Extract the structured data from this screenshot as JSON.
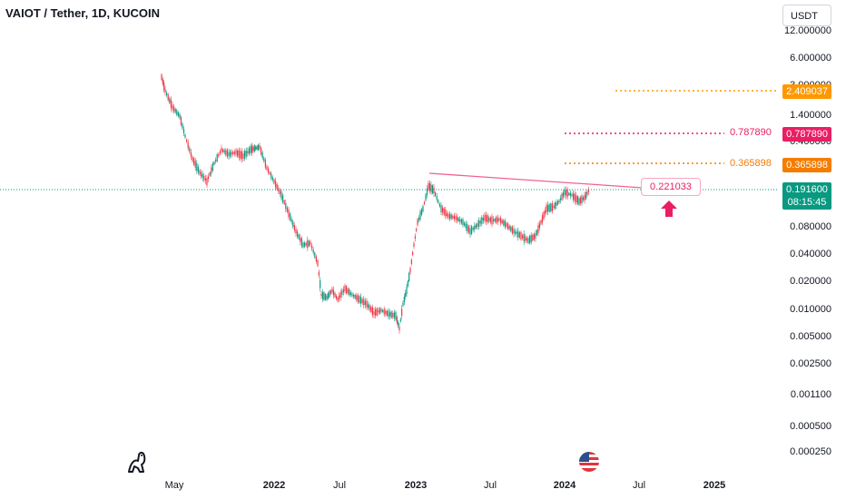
{
  "header": {
    "symbol_title": "VAIOT / Tether, 1D, KUCOIN",
    "currency_button": "USDT"
  },
  "price_axis": {
    "labels": [
      "12.000000",
      "6.000000",
      "3.000000",
      "1.400000",
      "0.400000",
      "0.080000",
      "0.040000",
      "0.020000",
      "0.010000",
      "0.005000",
      "0.002500",
      "0.001100",
      "0.000500",
      "0.000250"
    ]
  },
  "time_axis": {
    "labels": [
      {
        "text": "May",
        "bold": false
      },
      {
        "text": "2022",
        "bold": true
      },
      {
        "text": "Jul",
        "bold": false
      },
      {
        "text": "2023",
        "bold": true
      },
      {
        "text": "Jul",
        "bold": false
      },
      {
        "text": "2024",
        "bold": true
      },
      {
        "text": "Jul",
        "bold": false
      },
      {
        "text": "2025",
        "bold": true
      }
    ]
  },
  "levels": [
    {
      "value": "2.409037",
      "color": "#ff9800",
      "line_label": ""
    },
    {
      "value": "0.787890",
      "color": "#e91e63",
      "line_label": "0.787890"
    },
    {
      "value": "0.365898",
      "color": "#f57c00",
      "line_label": "0.365898"
    }
  ],
  "last_price": {
    "value": "0.191600",
    "countdown": "08:15:45",
    "color": "#089981"
  },
  "annotation": {
    "value": "0.221033",
    "color": "#e91e63"
  },
  "colors": {
    "up": "#089981",
    "down": "#f23645",
    "trendline": "#f06292",
    "arrow": "#e91e63"
  },
  "icons": {
    "logo": "tradingview-dino-icon",
    "flag": "us-flag-icon",
    "arrow": "arrow-up-icon"
  }
}
